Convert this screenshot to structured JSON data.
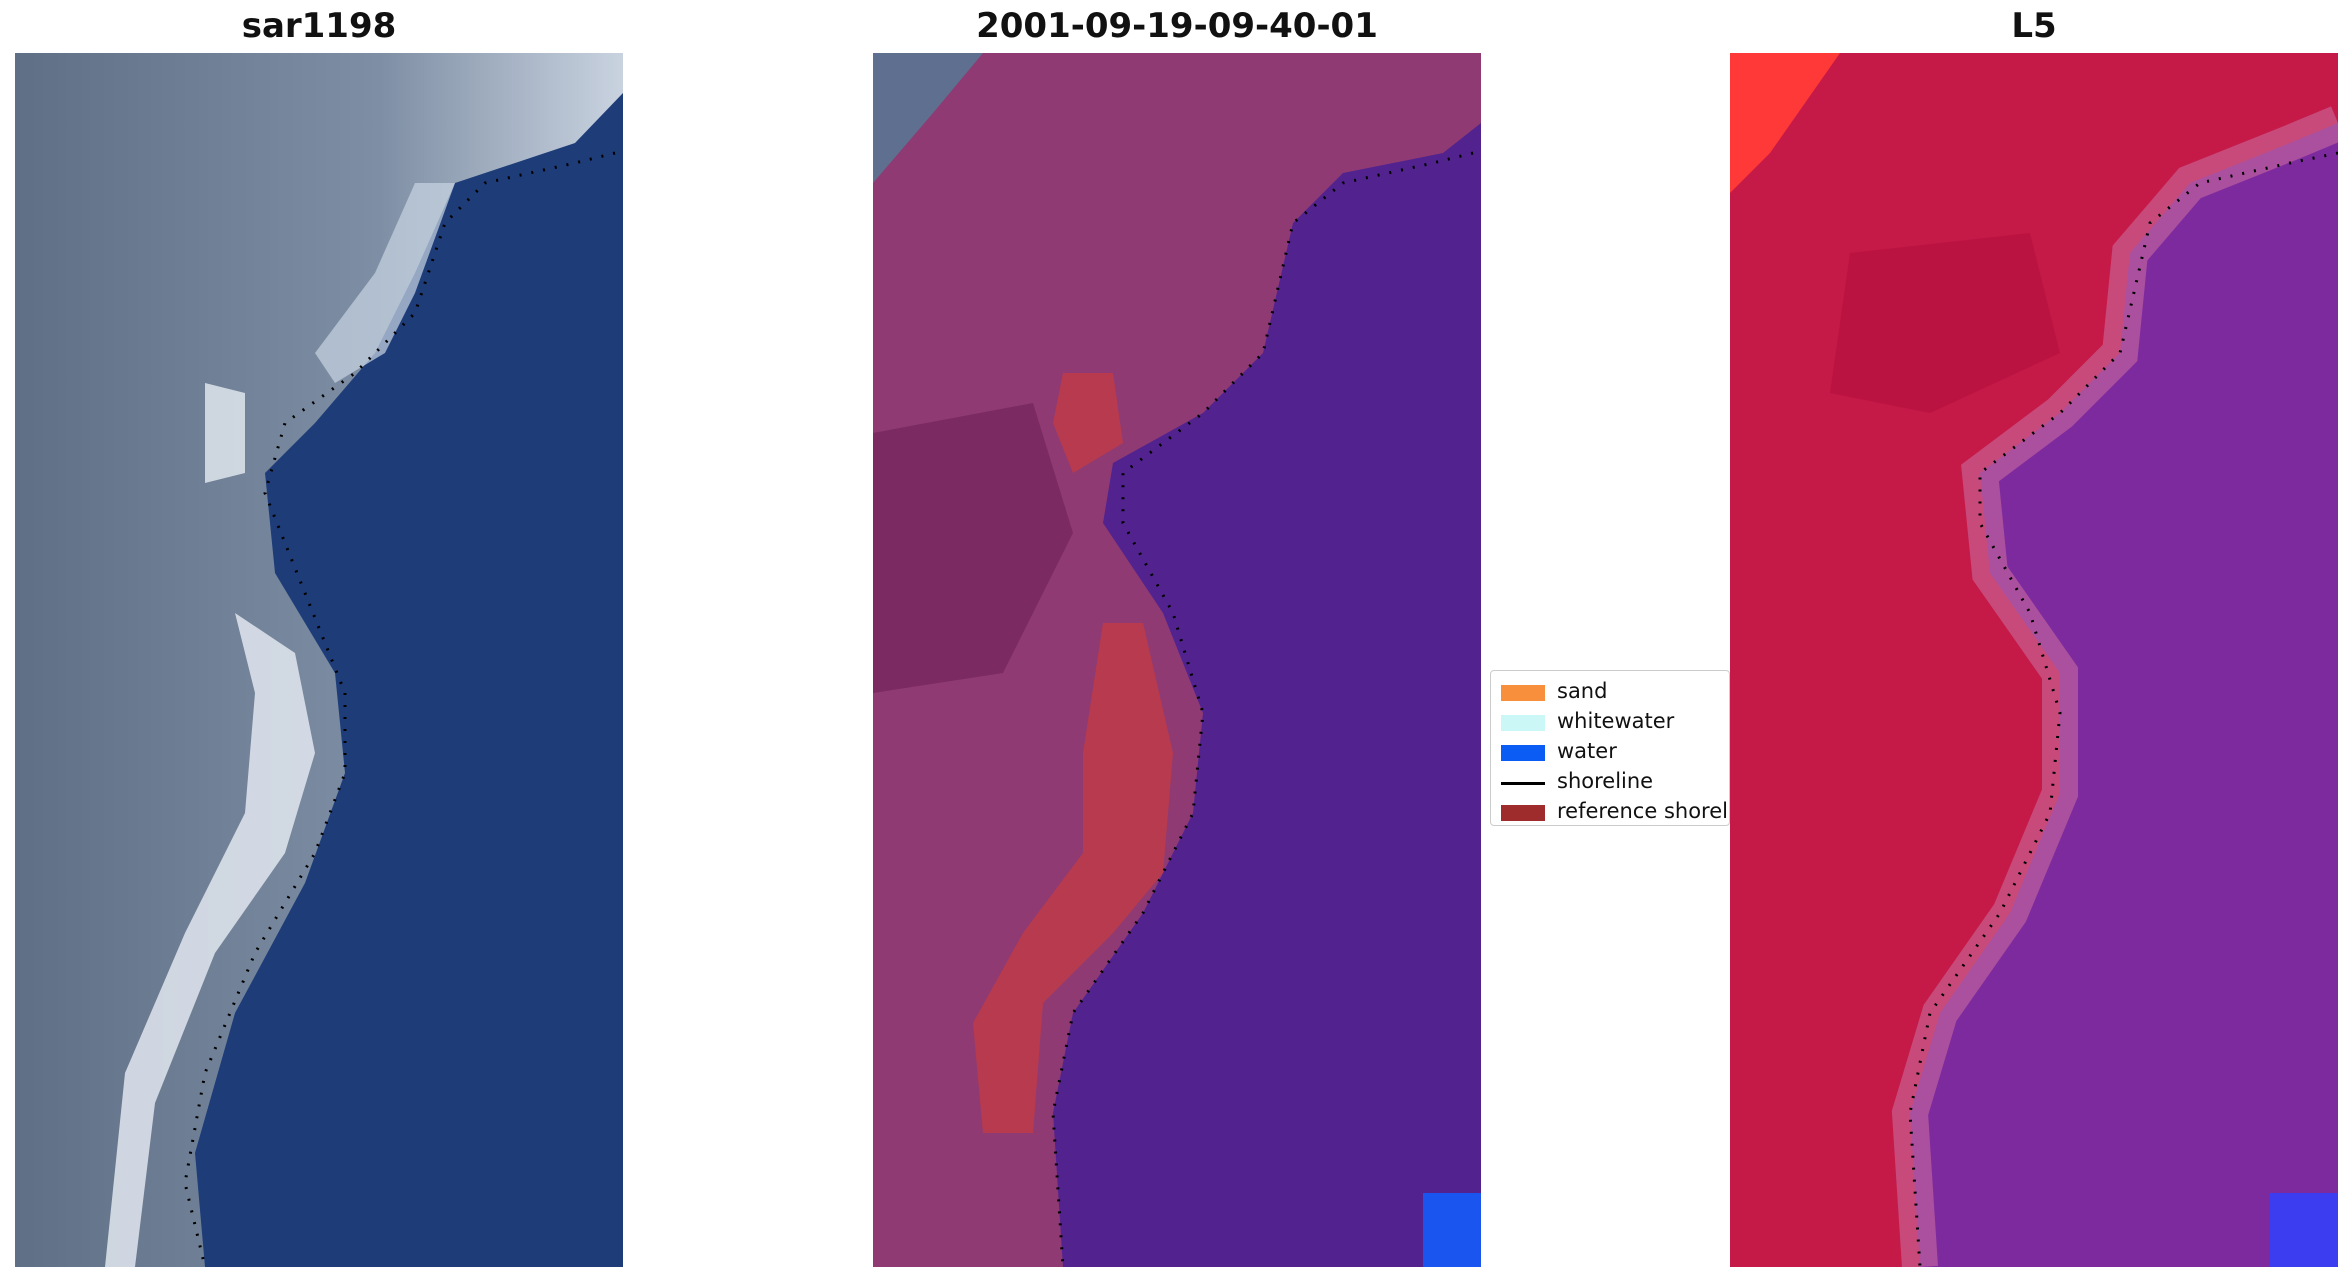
{
  "panels": [
    {
      "title": "sar1198"
    },
    {
      "title": "2001-09-19-09-40-01"
    },
    {
      "title": "L5"
    }
  ],
  "legend": {
    "items": [
      {
        "label": "sand",
        "color": "#f88f3c",
        "type": "patch"
      },
      {
        "label": "whitewater",
        "color": "#ccf7f7",
        "type": "patch"
      },
      {
        "label": "water",
        "color": "#0a5cf5",
        "type": "patch"
      },
      {
        "label": "shoreline",
        "color": "#000000",
        "type": "line"
      },
      {
        "label": "reference shoreline",
        "color": "#9e2c2c",
        "type": "patch"
      }
    ]
  },
  "colors": {
    "panel1_water": "#1e3c78",
    "panel1_land": "#6f7f96",
    "panel2_water": "#52238f",
    "panel2_land": "#8f3a72",
    "panel2_reference": "#b83a4e",
    "panel3_land": "#c51a48",
    "panel3_water": "#7d2a9f"
  }
}
